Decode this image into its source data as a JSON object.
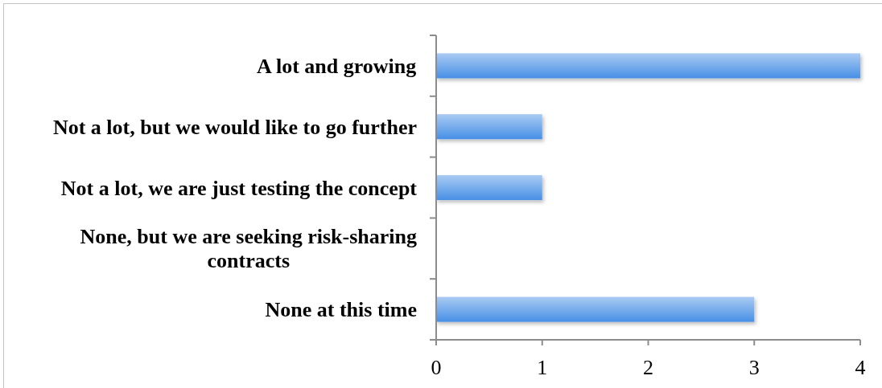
{
  "chart_data": {
    "type": "bar",
    "orientation": "horizontal",
    "categories": [
      "A lot and growing",
      "Not a lot, but we would like to go further",
      "Not a lot, we are just testing the concept",
      "None, but we are seeking risk-sharing contracts",
      "None at this time"
    ],
    "values": [
      4,
      1,
      1,
      0,
      3
    ],
    "color": "#74aaeb",
    "xlim": [
      0,
      4
    ],
    "xticks": [
      0,
      1,
      2,
      3,
      4
    ]
  }
}
